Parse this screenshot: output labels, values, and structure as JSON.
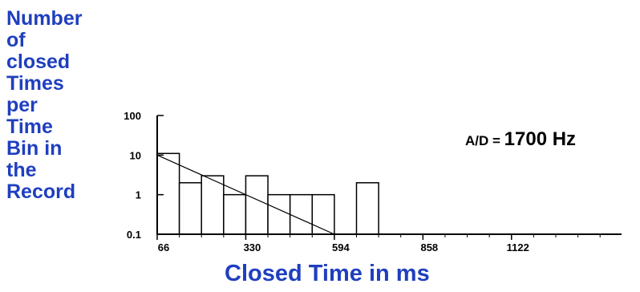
{
  "chart_data": {
    "type": "bar",
    "title": "",
    "xlabel": "Closed Time in ms",
    "ylabel_lines": [
      "Number",
      "of",
      "closed",
      "Times",
      "per",
      "Time",
      "Bin in",
      "the",
      "Record"
    ],
    "y_scale": "log",
    "ylim": [
      0.1,
      100
    ],
    "xlim": [
      66,
      1450
    ],
    "y_ticks": [
      {
        "value": 0.1,
        "label": "0.1"
      },
      {
        "value": 1,
        "label": "1"
      },
      {
        "value": 10,
        "label": "10"
      },
      {
        "value": 100,
        "label": "100"
      }
    ],
    "x_ticks": [
      {
        "value": 66,
        "label": "66"
      },
      {
        "value": 330,
        "label": "330"
      },
      {
        "value": 594,
        "label": "594"
      },
      {
        "value": 858,
        "label": "858"
      },
      {
        "value": 1122,
        "label": "1122"
      }
    ],
    "bin_width": 66,
    "bins": [
      {
        "start": 66,
        "end": 132,
        "count": 11
      },
      {
        "start": 132,
        "end": 198,
        "count": 2
      },
      {
        "start": 198,
        "end": 264,
        "count": 3
      },
      {
        "start": 264,
        "end": 330,
        "count": 1
      },
      {
        "start": 330,
        "end": 396,
        "count": 3
      },
      {
        "start": 396,
        "end": 462,
        "count": 1
      },
      {
        "start": 462,
        "end": 528,
        "count": 1
      },
      {
        "start": 528,
        "end": 594,
        "count": 1
      },
      {
        "start": 660,
        "end": 726,
        "count": 2
      }
    ],
    "fit_line": {
      "x": [
        66,
        594
      ],
      "y": [
        10,
        0.1
      ]
    },
    "grid": false,
    "legend": "none"
  },
  "annotation": {
    "prefix": "A/D = ",
    "value": "1700 Hz"
  }
}
